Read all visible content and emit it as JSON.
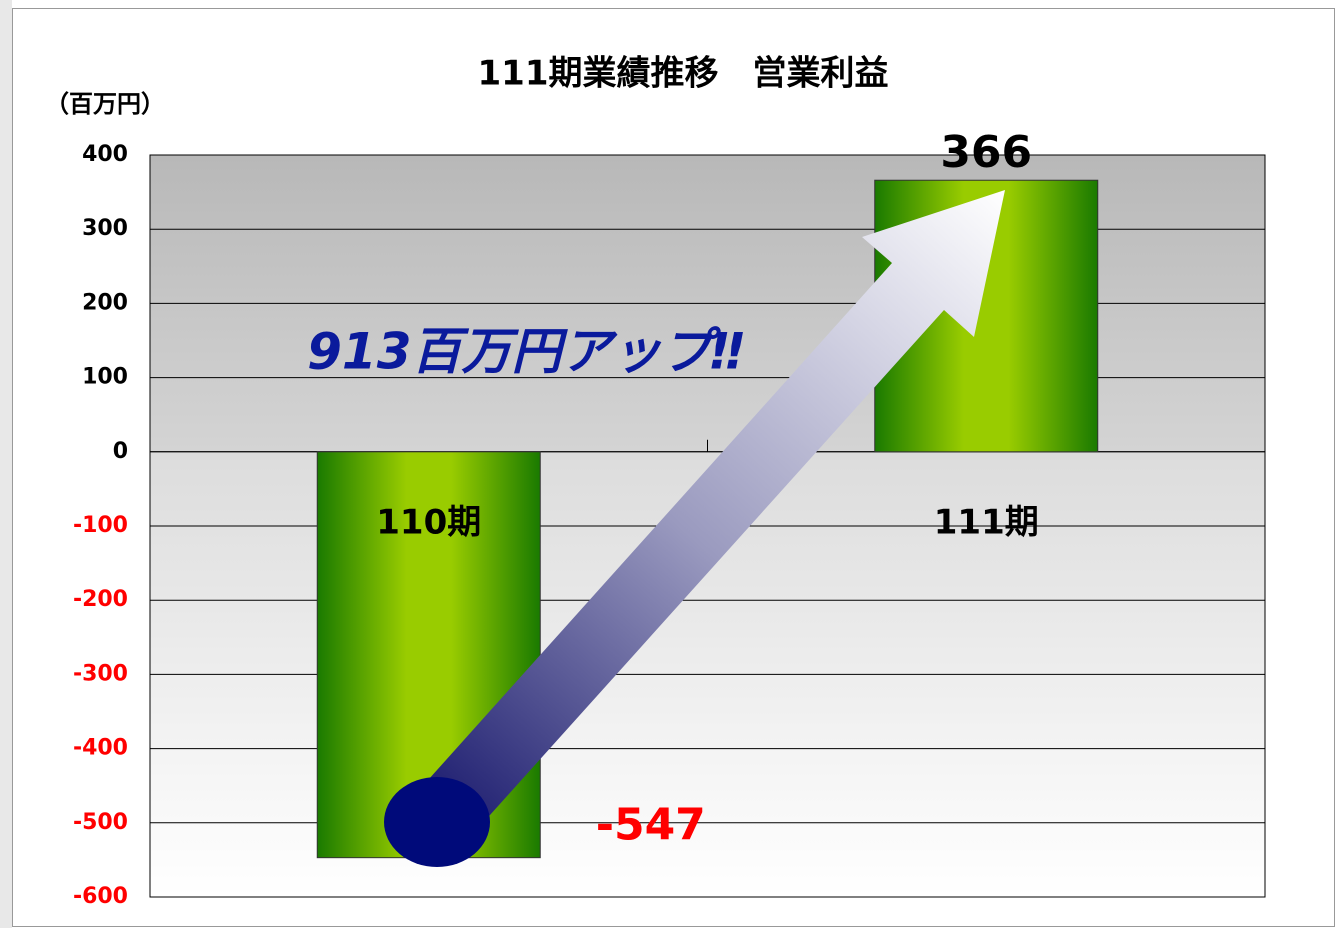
{
  "chart_data": {
    "type": "bar",
    "title": "111期業績推移　営業利益",
    "y_label": "（百万円）",
    "annotation": "913百万円アップ‼",
    "categories": [
      "110期",
      "111期"
    ],
    "values": [
      -547,
      366
    ],
    "color": "#99cc00",
    "negative_color": "#ff0000",
    "ylim": [
      -600,
      400
    ],
    "yticks": [
      -600,
      -500,
      -400,
      -300,
      -200,
      -100,
      0,
      100,
      200,
      300,
      400
    ],
    "grid": true
  }
}
